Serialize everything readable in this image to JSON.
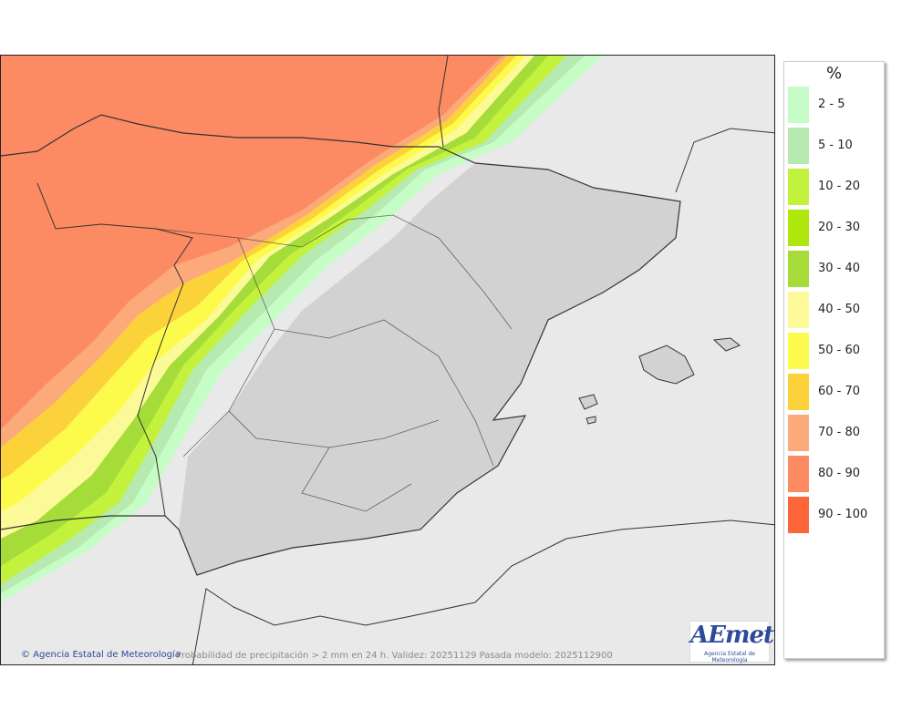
{
  "legend": {
    "unit": "%",
    "items": [
      {
        "label": "2 - 5",
        "color": "#c6fcc6"
      },
      {
        "label": "5 - 10",
        "color": "#b6eab0"
      },
      {
        "label": "10 - 20",
        "color": "#c3f23c"
      },
      {
        "label": "20 - 30",
        "color": "#aee60d"
      },
      {
        "label": "30 - 40",
        "color": "#a5dc3a"
      },
      {
        "label": "40 - 50",
        "color": "#fcfa98"
      },
      {
        "label": "50 - 60",
        "color": "#fcfa4a"
      },
      {
        "label": "60 - 70",
        "color": "#fcd23a"
      },
      {
        "label": "70 - 80",
        "color": "#fcaa7a"
      },
      {
        "label": "80 - 90",
        "color": "#fc8a62"
      },
      {
        "label": "90 - 100",
        "color": "#fc6638"
      }
    ]
  },
  "map": {
    "credit": "Agencia Estatal de Meteorología",
    "caption": "Probabilidad de precipitación > 2 mm en 24 h. Validez: 20251129 Pasada modelo: 2025112900",
    "colors": {
      "sea": "#e9e9e9",
      "land_dry": "#d2d2d2",
      "border": "#333333"
    }
  },
  "logo": {
    "word": "AEmet",
    "subtitle": "Agencia Estatal de Meteorología"
  }
}
